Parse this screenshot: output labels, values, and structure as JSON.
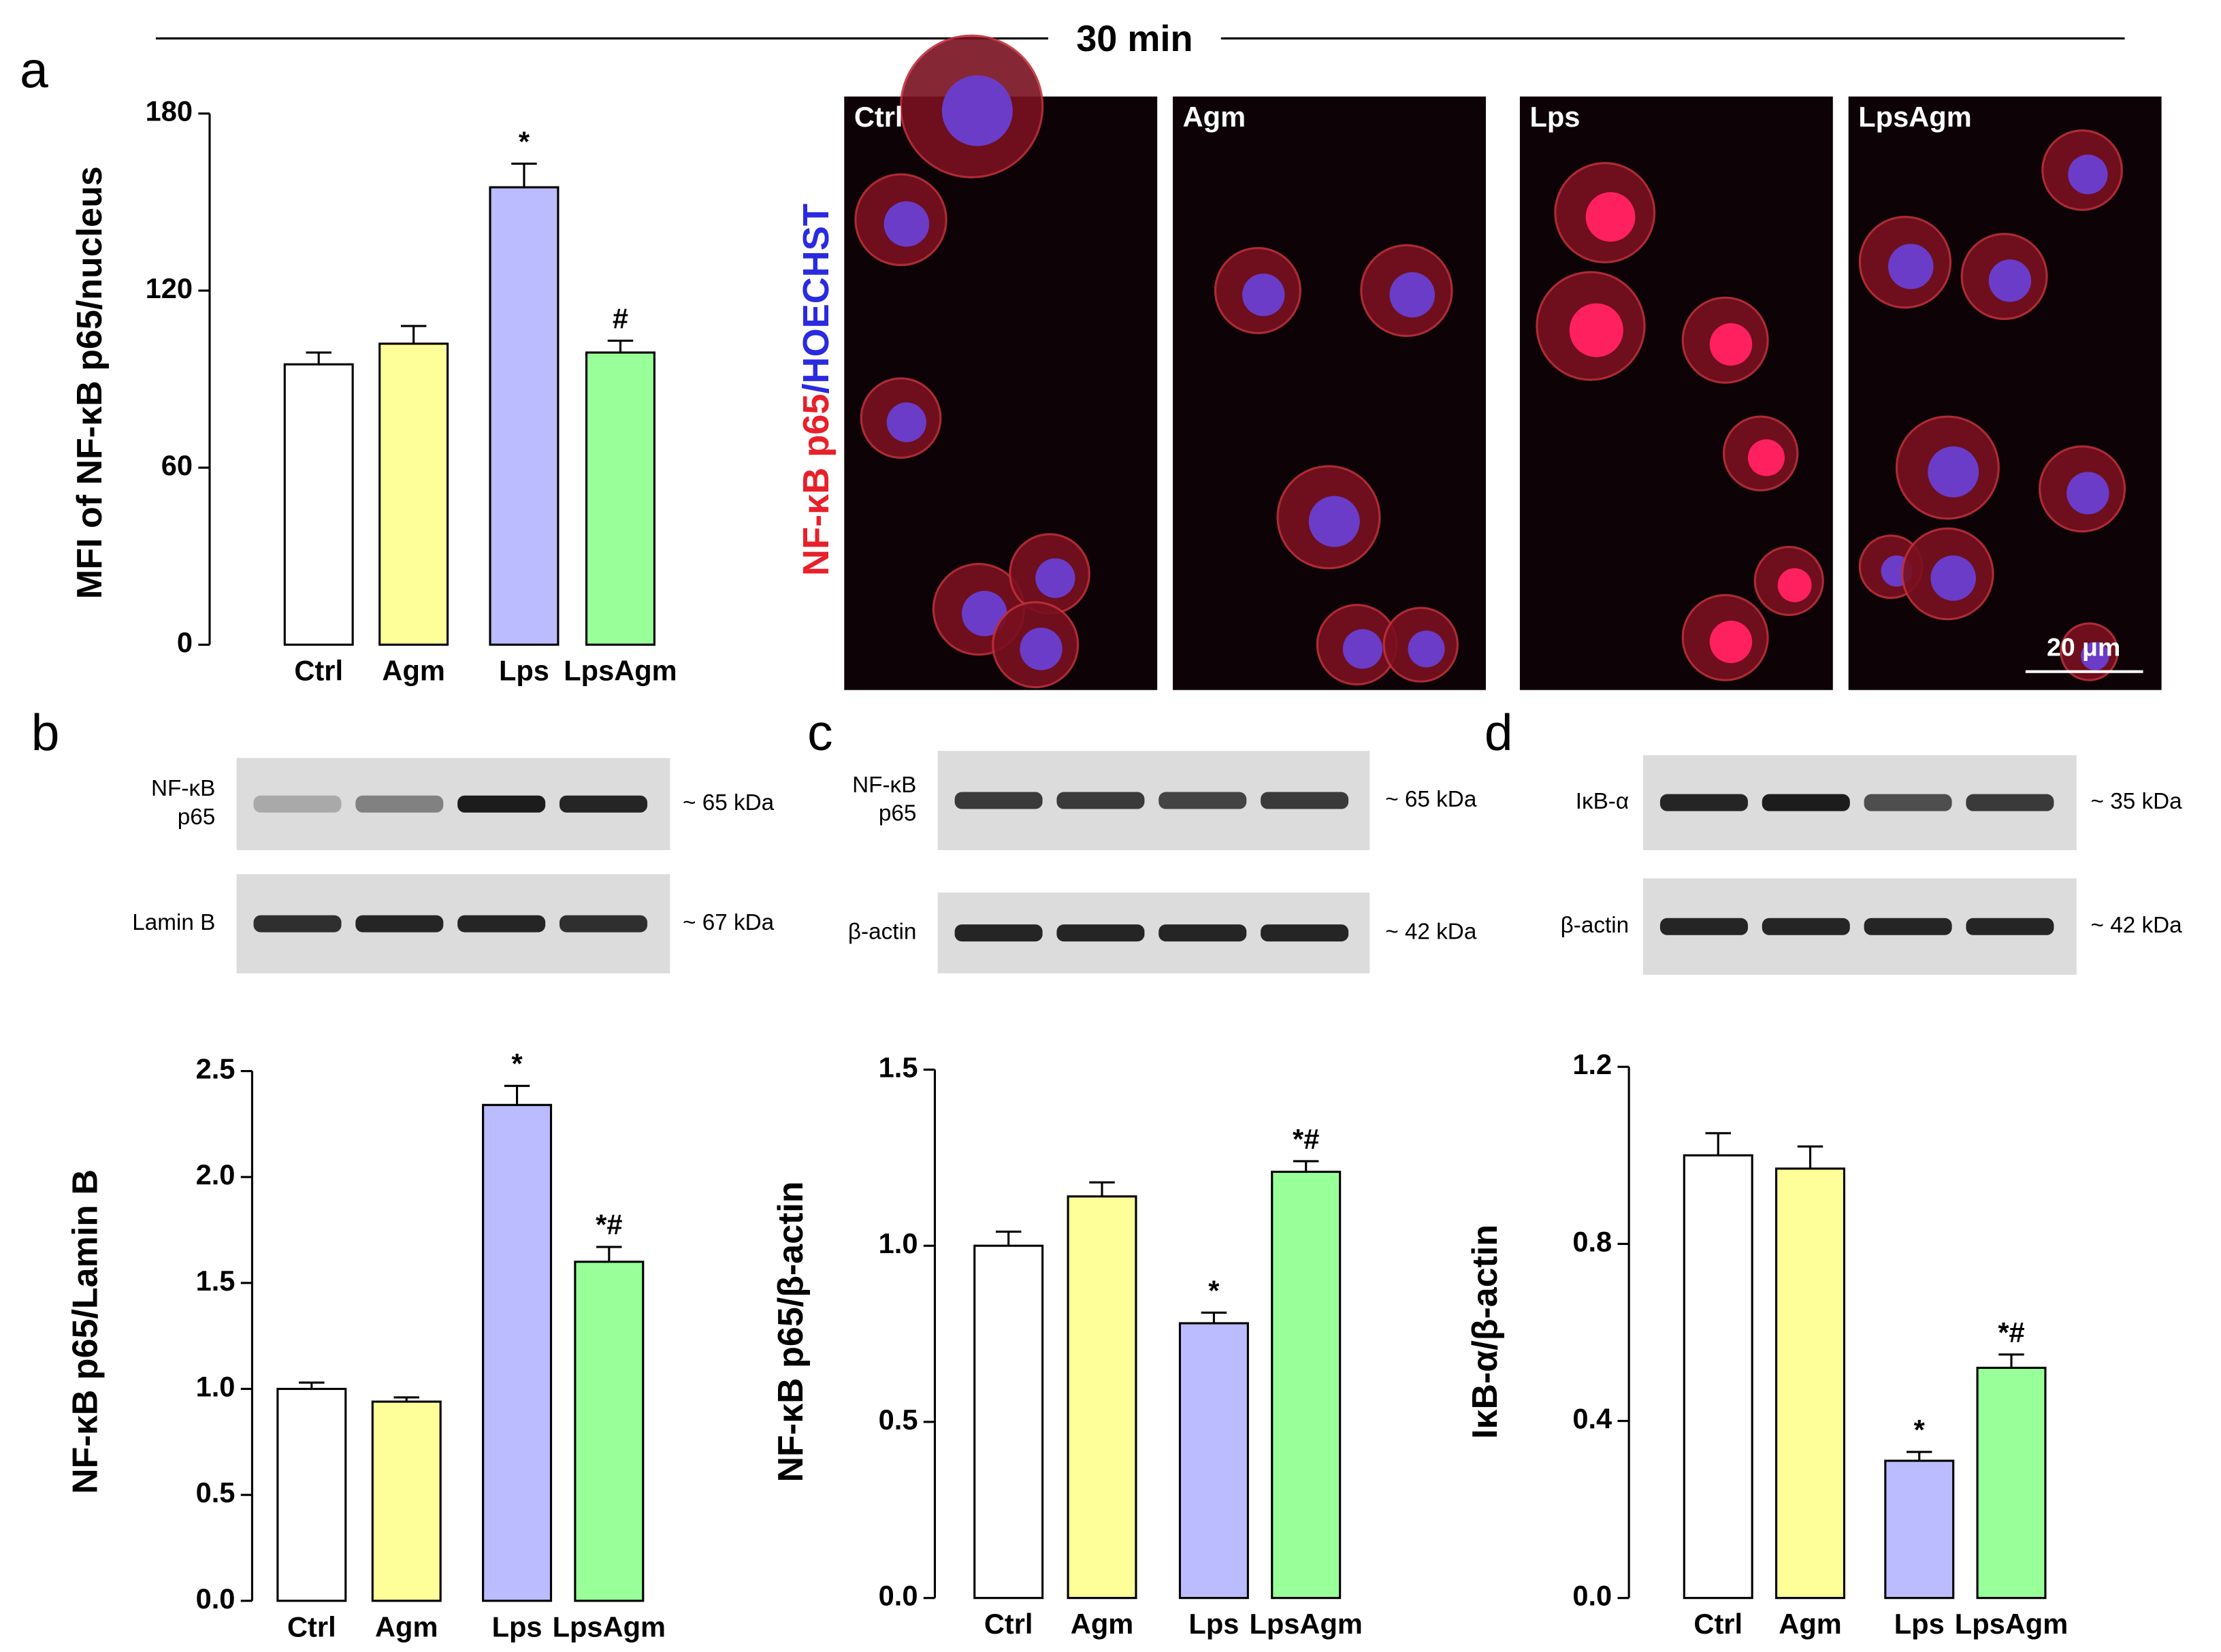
{
  "header": {
    "title": "30 min"
  },
  "panels": [
    "a",
    "b",
    "c",
    "d"
  ],
  "microscopy": {
    "labels": [
      "Ctrl",
      "Agm",
      "Lps",
      "LpsAgm"
    ],
    "stain": [
      "NF-κB p65",
      "/HOECHST"
    ],
    "scale_bar": "20 μm"
  },
  "blots": [
    {
      "rows": [
        {
          "label": [
            "NF-κB",
            "p65"
          ],
          "size": "~ 65 kDa"
        },
        {
          "label": [
            "Lamin B"
          ],
          "size": "~ 67 kDa"
        }
      ]
    },
    {
      "rows": [
        {
          "label": [
            "NF-κB",
            "p65"
          ],
          "size": "~ 65 kDa"
        },
        {
          "label": [
            "β-actin"
          ],
          "size": "~ 42 kDa"
        }
      ]
    },
    {
      "rows": [
        {
          "label": [
            "IκB-α"
          ],
          "size": "~ 35 kDa"
        },
        {
          "label": [
            "β-actin"
          ],
          "size": "~ 42 kDa"
        }
      ]
    }
  ],
  "chart_data": [
    {
      "type": "bar",
      "ylabel": "MFI of NF-κB p65/nucleus",
      "categories": [
        "Ctrl",
        "Agm",
        "Lps",
        "LpsAgm"
      ],
      "values": [
        95,
        102,
        155,
        99
      ],
      "errors": [
        4,
        6,
        8,
        4
      ],
      "annotations": [
        null,
        null,
        "*",
        "#"
      ],
      "colors": [
        "#ffffff",
        "#ffff99",
        "#bbbbff",
        "#99ff99"
      ],
      "ylim": [
        0,
        180
      ],
      "yticks": [
        0,
        60,
        120,
        180
      ]
    },
    {
      "type": "bar",
      "ylabel": "NF-κB p65/Lamin B",
      "categories": [
        "Ctrl",
        "Agm",
        "Lps",
        "LpsAgm"
      ],
      "values": [
        1.0,
        0.94,
        2.34,
        1.6
      ],
      "errors": [
        0.03,
        0.02,
        0.09,
        0.07
      ],
      "annotations": [
        null,
        null,
        "*",
        "*#"
      ],
      "colors": [
        "#ffffff",
        "#ffff99",
        "#bbbbff",
        "#99ff99"
      ],
      "ylim": [
        0,
        2.5
      ],
      "yticks": [
        {
          "value": 0,
          "label": "0.0"
        },
        0.5,
        {
          "value": 1,
          "label": "1.0"
        },
        1.5,
        {
          "value": 2,
          "label": "2.0"
        },
        2.5
      ]
    },
    {
      "type": "bar",
      "ylabel": "NF-κB p65/β-actin",
      "categories": [
        "Ctrl",
        "Agm",
        "Lps",
        "LpsAgm"
      ],
      "values": [
        1.0,
        1.14,
        0.78,
        1.21
      ],
      "errors": [
        0.04,
        0.04,
        0.03,
        0.03
      ],
      "annotations": [
        null,
        null,
        "*",
        "*#"
      ],
      "colors": [
        "#ffffff",
        "#ffff99",
        "#bbbbff",
        "#99ff99"
      ],
      "ylim": [
        0,
        1.5
      ],
      "yticks": [
        {
          "value": 0,
          "label": "0.0"
        },
        0.5,
        {
          "value": 1,
          "label": "1.0"
        },
        1.5
      ]
    },
    {
      "type": "bar",
      "ylabel": "IκB-α/β-actin",
      "categories": [
        "Ctrl",
        "Agm",
        "Lps",
        "LpsAgm"
      ],
      "values": [
        1.0,
        0.97,
        0.31,
        0.52
      ],
      "errors": [
        0.05,
        0.05,
        0.02,
        0.03
      ],
      "annotations": [
        null,
        null,
        "*",
        "*#"
      ],
      "colors": [
        "#ffffff",
        "#ffff99",
        "#bbbbff",
        "#99ff99"
      ],
      "ylim": [
        0,
        1.2
      ],
      "yticks": [
        {
          "value": 0,
          "label": "0.0"
        },
        0.4,
        0.8,
        1.2
      ]
    }
  ]
}
